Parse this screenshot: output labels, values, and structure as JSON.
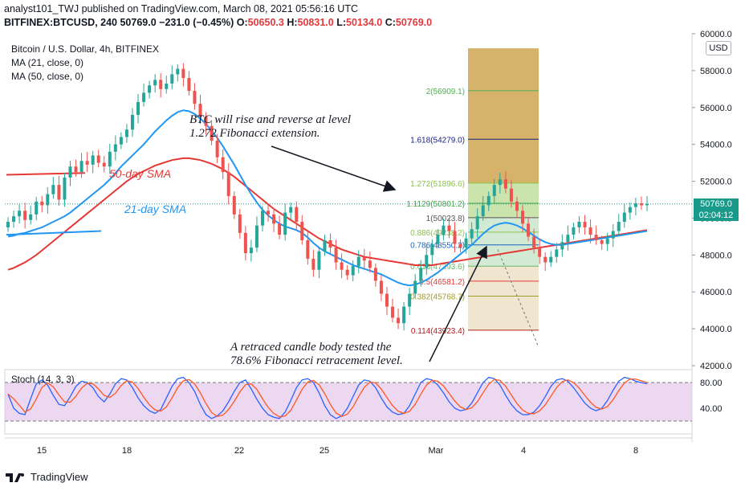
{
  "header": {
    "line1": "analyst101_TWJ published on TradingView.com, March 08, 2021 05:56:16 UTC",
    "symbol": "BITFINEX:BTCUSD, 240",
    "last": "50769.0",
    "change": "−231.0 (−0.45%)",
    "o_label": "O:",
    "o_val": "50650.3",
    "h_label": "H:",
    "h_val": "50831.0",
    "l_label": "L:",
    "l_val": "50134.0",
    "c_label": "C:",
    "c_val": "50769.0"
  },
  "legend": {
    "title": "Bitcoin / U.S. Dollar, 4h, BITFINEX",
    "ma21": "MA (21, close, 0)",
    "ma50": "MA (50, close, 0)"
  },
  "stoch_label": "Stoch (14, 3, 3)",
  "currency": "USD",
  "price_tag": "50769.0",
  "timer_tag": "02:04:12",
  "footer": {
    "brand": "TradingView"
  },
  "colors": {
    "up": "#26a69a",
    "down": "#ef5350",
    "ma21": "#2196f3",
    "ma50": "#e53935",
    "stoch_k": "#2962ff",
    "stoch_d": "#ff5722",
    "stoch_bg": "#e1bee7"
  },
  "annotations": {
    "top_text_1": "BTC will rise and reverse at level",
    "top_text_2": "1.272 Fibonacci extension.",
    "bottom_text_1": "A  retraced candle body tested the",
    "bottom_text_2": "78.6% Fibonacci retracement level.",
    "sma50": "50-day SMA",
    "sma21": "21-day SMA"
  },
  "chart_data": {
    "type": "candlestick",
    "price_axis": {
      "min": 42000,
      "max": 60000,
      "ticks": [
        "42000.0",
        "44000.0",
        "46000.0",
        "48000.0",
        "50000.0",
        "52000.0",
        "54000.0",
        "56000.0",
        "58000.0",
        "60000.0"
      ]
    },
    "time_axis": {
      "ticks": [
        "15",
        "18",
        "22",
        "25",
        "Mar",
        "4",
        "8"
      ]
    },
    "stoch_axis": {
      "ticks": [
        "40.00",
        "80.00"
      ]
    },
    "fibonacci": [
      {
        "label": "2(56909.1)",
        "price": 56909.1,
        "color": "#4caf50"
      },
      {
        "label": "1.618(54279.0)",
        "price": 54279.0,
        "color": "#1a237e"
      },
      {
        "label": "1.272(51896.6)",
        "price": 51896.6,
        "color": "#8bc34a"
      },
      {
        "label": "1.1129(50801.2)",
        "price": 50801.2,
        "color": "#43a047"
      },
      {
        "label": "1(50023.8)",
        "price": 50023.8,
        "color": "#555555"
      },
      {
        "label": "0.886(49238.2)",
        "price": 49238.2,
        "color": "#8bc34a"
      },
      {
        "label": "0.786(48550.2)",
        "price": 48550.2,
        "color": "#1565c0"
      },
      {
        "label": "0.618(47393.6)",
        "price": 47393.6,
        "color": "#66bb6a"
      },
      {
        "label": "0.5(46581.2)",
        "price": 46581.2,
        "color": "#e53935"
      },
      {
        "label": "0.382(45768.7)",
        "price": 45768.7,
        "color": "#9e9d24"
      },
      {
        "label": "0.114(43923.4)",
        "price": 43923.4,
        "color": "#b71c1c"
      }
    ],
    "close_series": [
      49800,
      50100,
      50400,
      49900,
      50200,
      50900,
      50700,
      51300,
      51800,
      51000,
      52200,
      52800,
      52500,
      53100,
      52900,
      53400,
      53000,
      52800,
      53600,
      54000,
      54400,
      54800,
      55600,
      56300,
      56800,
      57200,
      57500,
      57000,
      57300,
      57800,
      58100,
      57600,
      56900,
      56200,
      55500,
      55000,
      54200,
      53300,
      52500,
      51200,
      50200,
      49200,
      48100,
      48400,
      49600,
      50400,
      50200,
      49700,
      49100,
      50300,
      50600,
      49800,
      48800,
      47800,
      47200,
      48200,
      48800,
      48400,
      47600,
      47200,
      46900,
      47400,
      47900,
      47700,
      47300,
      46600,
      45900,
      45200,
      44600,
      44300,
      45200,
      45900,
      46600,
      47300,
      48000,
      48600,
      49100,
      49600,
      49300,
      48600,
      48400,
      48900,
      49400,
      50100,
      50700,
      51200,
      51800,
      52100,
      51600,
      50900,
      50400,
      49700,
      49000,
      48400,
      47900,
      47600,
      47900,
      48300,
      48700,
      49100,
      49500,
      49800,
      49500,
      49100,
      48800,
      48600,
      48900,
      49300,
      49800,
      50300,
      50600,
      50800,
      50700,
      50769
    ],
    "ma21": [
      49000,
      49050,
      49150,
      49200,
      49300,
      49400,
      49500,
      49650,
      49800,
      49950,
      50100,
      50300,
      50550,
      50800,
      51050,
      51300,
      51550,
      51800,
      52100,
      52450,
      52800,
      53100,
      53400,
      53700,
      54000,
      54350,
      54700,
      55000,
      55300,
      55550,
      55750,
      55850,
      55800,
      55650,
      55400,
      55100,
      54750,
      54350,
      53900,
      53400,
      52900,
      52350,
      51800,
      51300,
      50850,
      50450,
      50150,
      49900,
      49700,
      49550,
      49450,
      49350,
      49200,
      48950,
      48650,
      48400,
      48200,
      48050,
      47900,
      47750,
      47600,
      47450,
      47350,
      47250,
      47150,
      47050,
      46950,
      46800,
      46650,
      46500,
      46400,
      46350,
      46400,
      46500,
      46650,
      46850,
      47050,
      47300,
      47550,
      47800,
      48050,
      48300,
      48550,
      48850,
      49150,
      49400,
      49600,
      49700,
      49750,
      49700,
      49600,
      49450,
      49250,
      49050,
      48850,
      48700,
      48600,
      48550,
      48550,
      48600,
      48650,
      48700,
      48750,
      48800,
      48850,
      48900,
      48950,
      49000,
      49050,
      49100,
      49150,
      49200,
      49250,
      49300
    ],
    "ma50": [
      47200,
      47300,
      47450,
      47600,
      47800,
      48000,
      48250,
      48500,
      48750,
      49000,
      49250,
      49500,
      49750,
      50000,
      50250,
      50500,
      50750,
      51000,
      51250,
      51500,
      51750,
      52000,
      52200,
      52400,
      52550,
      52700,
      52850,
      52950,
      53050,
      53150,
      53200,
      53250,
      53250,
      53200,
      53150,
      53050,
      52950,
      52800,
      52650,
      52450,
      52250,
      52000,
      51750,
      51500,
      51250,
      51000,
      50750,
      50500,
      50300,
      50100,
      49900,
      49700,
      49500,
      49300,
      49100,
      48900,
      48750,
      48600,
      48450,
      48300,
      48200,
      48100,
      48000,
      47900,
      47850,
      47800,
      47750,
      47700,
      47650,
      47600,
      47550,
      47500,
      47450,
      47450,
      47450,
      47450,
      47500,
      47550,
      47600,
      47650,
      47700,
      47750,
      47800,
      47850,
      47900,
      47950,
      48000,
      48050,
      48100,
      48150,
      48200,
      48250,
      48300,
      48350,
      48400,
      48450,
      48500,
      48550,
      48600,
      48650,
      48700,
      48750,
      48800,
      48850,
      48900,
      48950,
      49000,
      49050,
      49100,
      49150,
      49200,
      49250,
      49300,
      49350
    ],
    "stoch": [
      62,
      40,
      32,
      30,
      55,
      78,
      84,
      76,
      60,
      46,
      44,
      58,
      74,
      82,
      80,
      72,
      58,
      50,
      62,
      78,
      86,
      84,
      72,
      56,
      44,
      36,
      32,
      38,
      56,
      74,
      86,
      88,
      80,
      66,
      46,
      30,
      24,
      28,
      36,
      50,
      66,
      80,
      84,
      70,
      54,
      40,
      30,
      26,
      24,
      34,
      52,
      72,
      84,
      86,
      80,
      64,
      44,
      30,
      24,
      28,
      40,
      58,
      76,
      84,
      82,
      72,
      56,
      42,
      34,
      30,
      32,
      44,
      62,
      80,
      86,
      84,
      76,
      64,
      50,
      40,
      36,
      38,
      48,
      64,
      80,
      88,
      86,
      76,
      60,
      46,
      36,
      30,
      30,
      34,
      44,
      58,
      74,
      84,
      86,
      82,
      72,
      60,
      48,
      40,
      36,
      40,
      52,
      68,
      82,
      88,
      86,
      82,
      80,
      78
    ]
  }
}
